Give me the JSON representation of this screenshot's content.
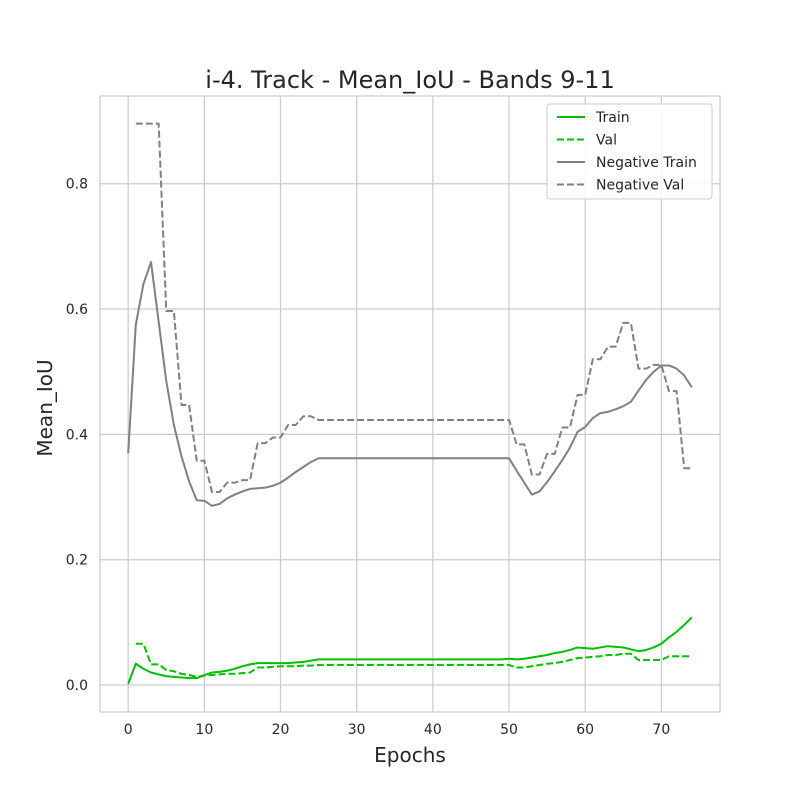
{
  "chart_data": {
    "type": "line",
    "title": "i-4. Track - Mean_IoU - Bands 9-11",
    "xlabel": "Epochs",
    "ylabel": "Mean_IoU",
    "xlim": [
      -3.7,
      77.7
    ],
    "ylim": [
      -0.043,
      0.94
    ],
    "xticks": [
      0,
      10,
      20,
      30,
      40,
      50,
      60,
      70
    ],
    "yticks": [
      0.0,
      0.2,
      0.4,
      0.6,
      0.8
    ],
    "ytick_labels": [
      "0.0",
      "0.2",
      "0.4",
      "0.6",
      "0.8"
    ],
    "grid": true,
    "legend_position": "top-right",
    "x": [
      0,
      1,
      2,
      3,
      4,
      5,
      6,
      7,
      8,
      9,
      10,
      11,
      12,
      13,
      14,
      15,
      16,
      17,
      18,
      19,
      20,
      21,
      22,
      23,
      24,
      25,
      26,
      27,
      28,
      29,
      30,
      31,
      32,
      33,
      34,
      35,
      36,
      37,
      38,
      39,
      40,
      41,
      42,
      43,
      44,
      45,
      46,
      47,
      48,
      49,
      50,
      51,
      52,
      53,
      54,
      55,
      56,
      57,
      58,
      59,
      60,
      61,
      62,
      63,
      64,
      65,
      66,
      67,
      68,
      69,
      70,
      71,
      72,
      73,
      74
    ],
    "series": [
      {
        "name": "Train",
        "color": "#00c000",
        "dash": "solid",
        "values": [
          0.002,
          0.034,
          0.026,
          0.02,
          0.017,
          0.014,
          0.013,
          0.012,
          0.011,
          0.011,
          0.016,
          0.02,
          0.021,
          0.023,
          0.026,
          0.03,
          0.033,
          0.035,
          0.035,
          0.035,
          0.035,
          0.035,
          0.036,
          0.037,
          0.039,
          0.041,
          0.041,
          0.041,
          0.041,
          0.041,
          0.041,
          0.041,
          0.041,
          0.041,
          0.041,
          0.041,
          0.041,
          0.041,
          0.041,
          0.041,
          0.041,
          0.041,
          0.041,
          0.041,
          0.041,
          0.041,
          0.041,
          0.041,
          0.041,
          0.041,
          0.042,
          0.041,
          0.042,
          0.044,
          0.046,
          0.048,
          0.051,
          0.053,
          0.056,
          0.06,
          0.059,
          0.058,
          0.06,
          0.062,
          0.061,
          0.06,
          0.057,
          0.054,
          0.056,
          0.06,
          0.066,
          0.076,
          0.085,
          0.096,
          0.108
        ]
      },
      {
        "name": "Val",
        "color": "#00c000",
        "dash": "dashed",
        "values": [
          null,
          0.066,
          0.066,
          0.033,
          0.033,
          0.024,
          0.022,
          0.018,
          0.016,
          0.013,
          0.015,
          0.016,
          0.017,
          0.018,
          0.018,
          0.019,
          0.02,
          0.028,
          0.028,
          0.029,
          0.03,
          0.03,
          0.03,
          0.031,
          0.031,
          0.032,
          0.032,
          0.032,
          0.032,
          0.032,
          0.032,
          0.032,
          0.032,
          0.032,
          0.032,
          0.032,
          0.032,
          0.032,
          0.032,
          0.032,
          0.032,
          0.032,
          0.032,
          0.032,
          0.032,
          0.032,
          0.032,
          0.032,
          0.032,
          0.032,
          0.032,
          0.028,
          0.028,
          0.03,
          0.032,
          0.034,
          0.035,
          0.037,
          0.04,
          0.043,
          0.044,
          0.045,
          0.046,
          0.048,
          0.048,
          0.05,
          0.05,
          0.04,
          0.04,
          0.04,
          0.04,
          0.046,
          0.046,
          0.046,
          0.046
        ]
      },
      {
        "name": "Negative Train",
        "color": "#808080",
        "dash": "solid",
        "values": [
          0.37,
          0.575,
          0.64,
          0.675,
          0.58,
          0.485,
          0.415,
          0.365,
          0.325,
          0.295,
          0.294,
          0.286,
          0.289,
          0.298,
          0.304,
          0.309,
          0.313,
          0.314,
          0.315,
          0.318,
          0.323,
          0.331,
          0.34,
          0.348,
          0.356,
          0.362,
          0.362,
          0.362,
          0.362,
          0.362,
          0.362,
          0.362,
          0.362,
          0.362,
          0.362,
          0.362,
          0.362,
          0.362,
          0.362,
          0.362,
          0.362,
          0.362,
          0.362,
          0.362,
          0.362,
          0.362,
          0.362,
          0.362,
          0.362,
          0.362,
          0.362,
          0.342,
          0.323,
          0.304,
          0.309,
          0.324,
          0.341,
          0.359,
          0.379,
          0.404,
          0.412,
          0.426,
          0.434,
          0.436,
          0.44,
          0.445,
          0.452,
          0.47,
          0.487,
          0.5,
          0.51,
          0.51,
          0.505,
          0.494,
          0.475
        ]
      },
      {
        "name": "Negative Val",
        "color": "#808080",
        "dash": "dashed",
        "values": [
          null,
          0.896,
          0.896,
          0.896,
          0.896,
          0.597,
          0.597,
          0.447,
          0.447,
          0.358,
          0.358,
          0.308,
          0.308,
          0.323,
          0.323,
          0.327,
          0.327,
          0.386,
          0.386,
          0.395,
          0.395,
          0.415,
          0.415,
          0.429,
          0.429,
          0.423,
          0.423,
          0.423,
          0.423,
          0.423,
          0.423,
          0.423,
          0.423,
          0.423,
          0.423,
          0.423,
          0.423,
          0.423,
          0.423,
          0.423,
          0.423,
          0.423,
          0.423,
          0.423,
          0.423,
          0.423,
          0.423,
          0.423,
          0.423,
          0.423,
          0.423,
          0.384,
          0.384,
          0.336,
          0.336,
          0.369,
          0.369,
          0.411,
          0.411,
          0.463,
          0.463,
          0.52,
          0.52,
          0.54,
          0.54,
          0.578,
          0.578,
          0.505,
          0.505,
          0.511,
          0.511,
          0.469,
          0.469,
          0.346,
          0.346
        ]
      }
    ]
  }
}
